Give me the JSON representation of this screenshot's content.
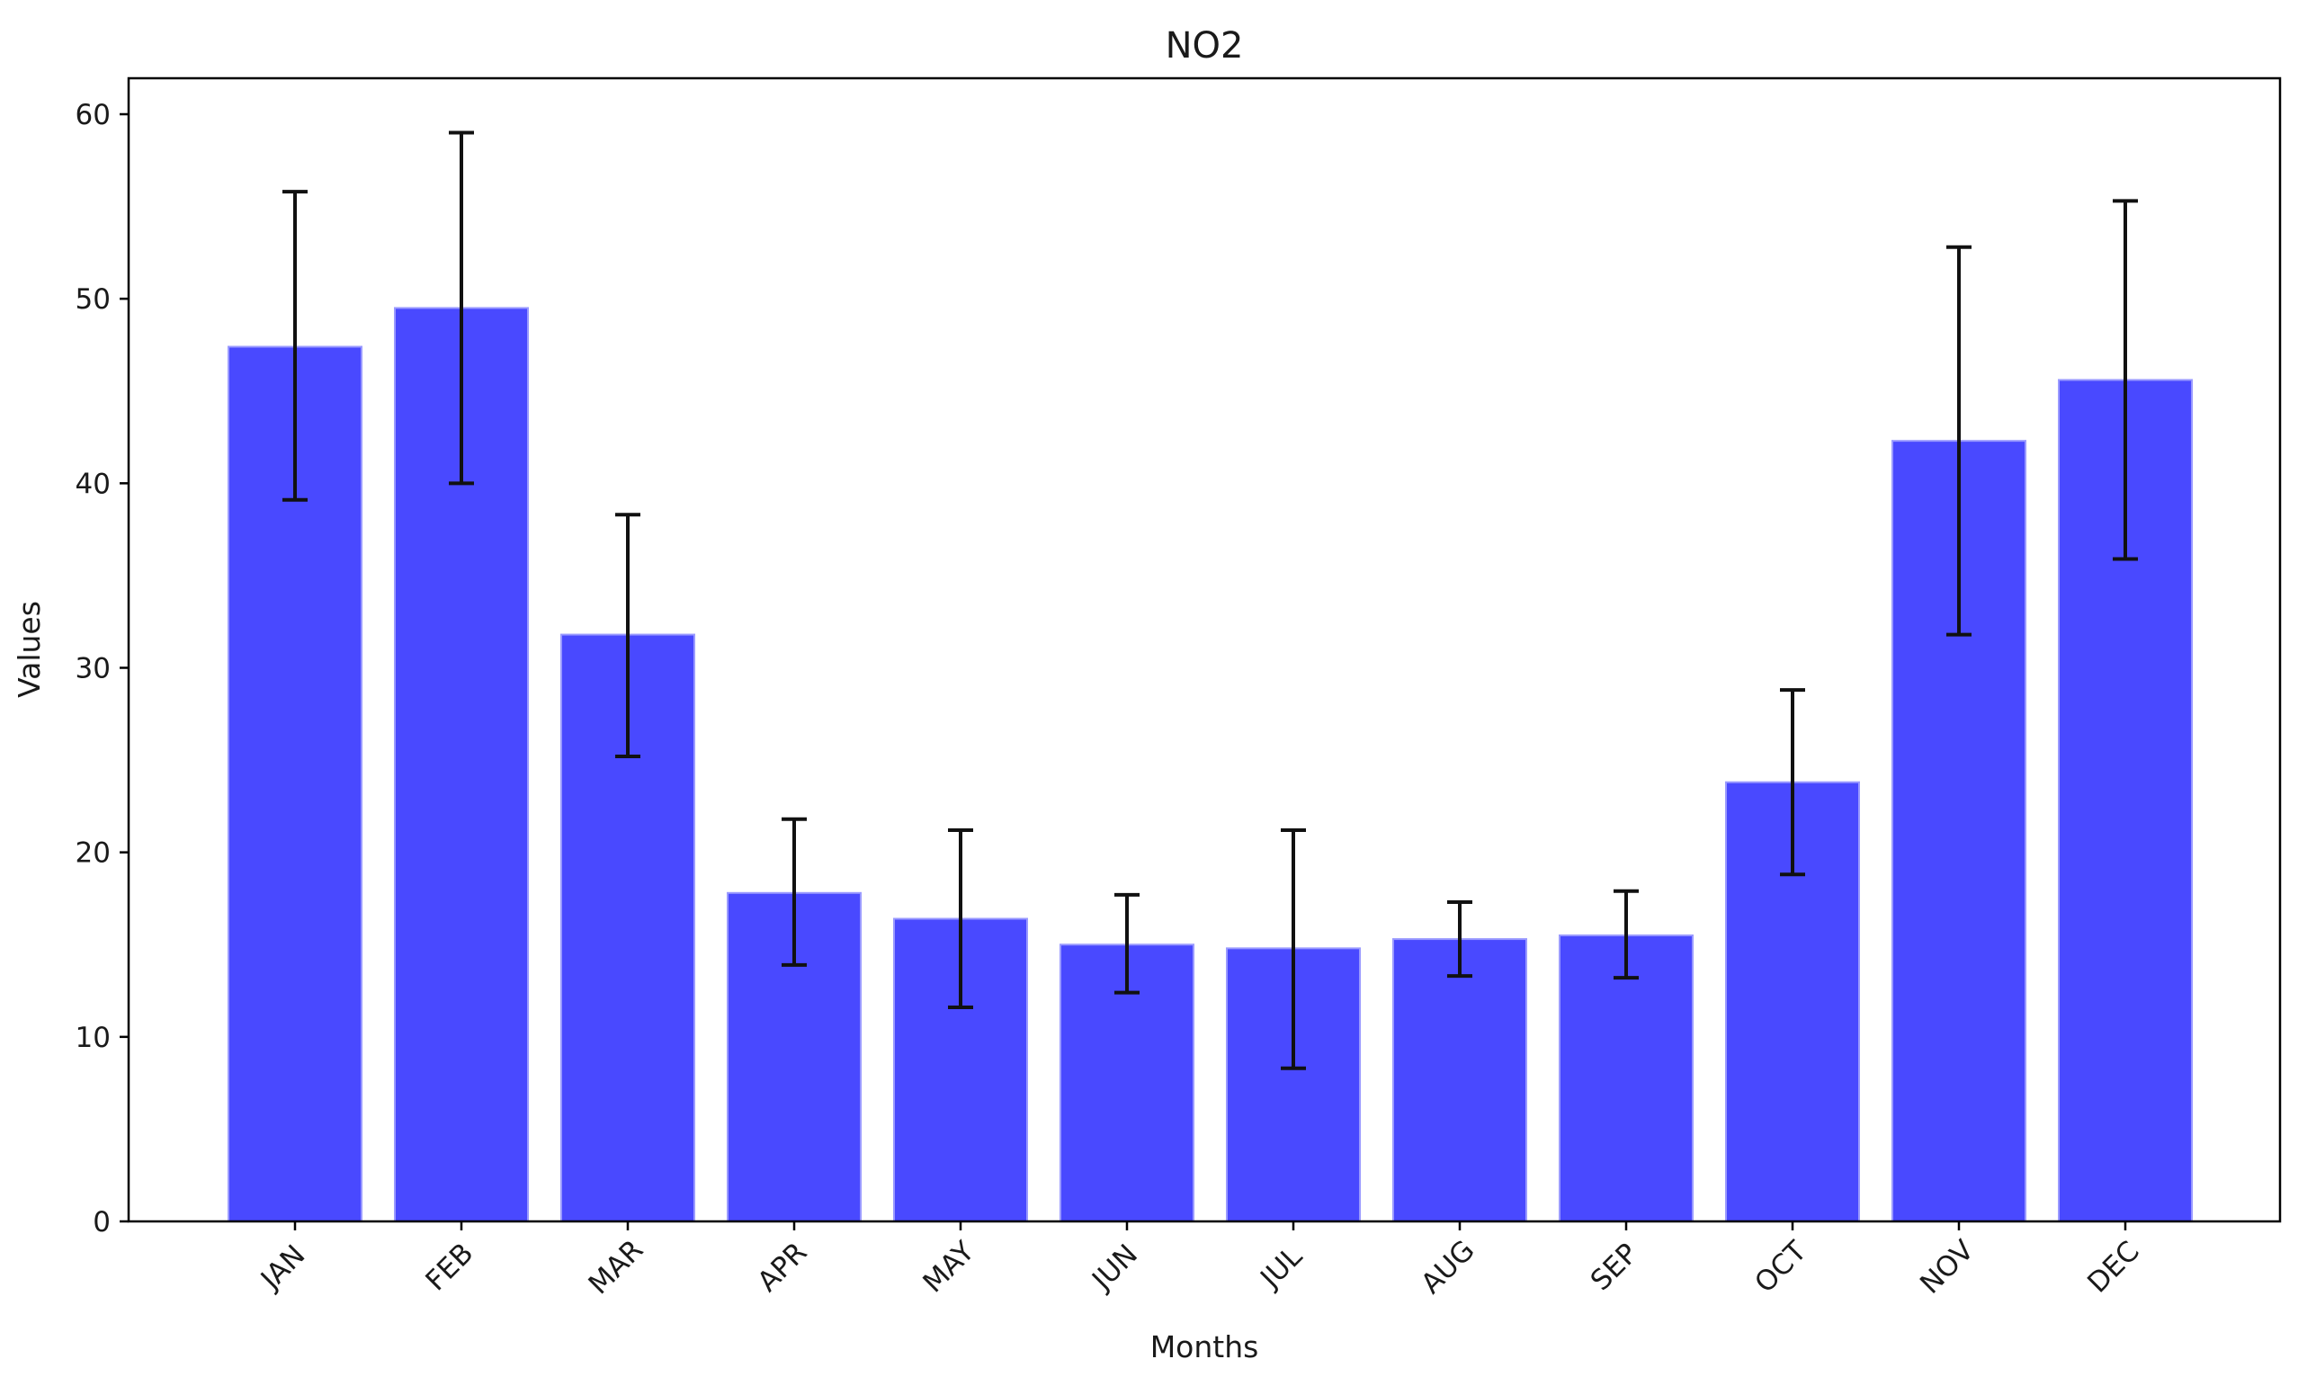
{
  "chart_data": {
    "type": "bar",
    "title": "NO2",
    "xlabel": "Months",
    "ylabel": "Values",
    "categories": [
      "JAN",
      "FEB",
      "MAR",
      "APR",
      "MAY",
      "JUN",
      "JUL",
      "AUG",
      "SEP",
      "OCT",
      "NOV",
      "DEC"
    ],
    "values": [
      47.4,
      49.5,
      31.8,
      17.8,
      16.4,
      15.0,
      14.8,
      15.3,
      15.5,
      23.8,
      42.3,
      45.6
    ],
    "error_low": [
      39.1,
      40.0,
      25.2,
      13.9,
      11.6,
      12.4,
      8.3,
      13.3,
      13.2,
      18.8,
      31.8,
      35.9
    ],
    "error_high": [
      55.8,
      59.0,
      38.3,
      21.8,
      21.2,
      17.7,
      21.2,
      17.3,
      17.9,
      28.8,
      52.8,
      55.3
    ],
    "ylim": [
      0,
      62
    ],
    "yticks": [
      0,
      10,
      20,
      30,
      40,
      50,
      60
    ],
    "grid": false,
    "bar_color": "#4949ff",
    "error_color": "#111111",
    "legend": null
  }
}
